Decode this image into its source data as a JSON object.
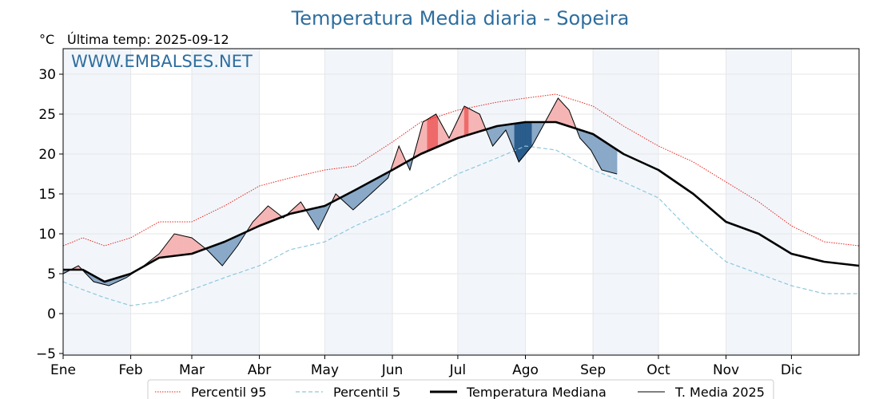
{
  "chart_data": {
    "type": "line",
    "title": "Temperatura Media diaria - Sopeira",
    "unit": "°C",
    "subtitle": "Última temp: 2025-09-12",
    "watermark": "WWW.EMBALSES.NET",
    "x_tick_labels": [
      "Ene",
      "Feb",
      "Mar",
      "Abr",
      "May",
      "Jun",
      "Jul",
      "Ago",
      "Sep",
      "Oct",
      "Nov",
      "Dic"
    ],
    "y_ticks": [
      -5,
      0,
      5,
      10,
      15,
      20,
      25,
      30
    ],
    "y_tick_labels": [
      "−5",
      "0",
      "5",
      "10",
      "15",
      "20",
      "25",
      "30"
    ],
    "ylim": [
      -5.2,
      33.2
    ],
    "xlim": [
      1,
      366
    ],
    "grid": true,
    "legend_position": "bottom-center",
    "colors": {
      "p95": "#e8251c",
      "p5": "#8ec7dc",
      "median": "#000000",
      "t2025": "#000000",
      "above_fill": "#f5b5b5",
      "above_fill_strong": "#ee6a6a",
      "below_fill": "#8aa9c8",
      "below_fill_strong": "#2a5c8c",
      "month_band": "#f2f6fb",
      "title": "#2e6e9e"
    },
    "series": [
      {
        "name": "Percentil 95",
        "style": "dotted",
        "x": [
          1,
          10,
          20,
          32,
          45,
          60,
          75,
          91,
          105,
          121,
          135,
          152,
          165,
          182,
          200,
          213,
          227,
          244,
          258,
          274,
          290,
          305,
          320,
          335,
          350,
          366
        ],
        "values": [
          8.5,
          9.5,
          8.5,
          9.5,
          11.5,
          11.5,
          13.5,
          16,
          17,
          18,
          18.5,
          21.5,
          24,
          25.5,
          26.5,
          27,
          27.5,
          26,
          23.5,
          21,
          19,
          16.5,
          14,
          11,
          9,
          8.5
        ]
      },
      {
        "name": "Percentil 5",
        "style": "dashed",
        "x": [
          1,
          10,
          20,
          32,
          45,
          60,
          75,
          91,
          105,
          121,
          135,
          152,
          165,
          182,
          200,
          213,
          227,
          244,
          258,
          274,
          290,
          305,
          320,
          335,
          350,
          366
        ],
        "values": [
          4,
          3,
          2,
          1,
          1.5,
          3,
          4.5,
          6,
          8,
          9,
          11,
          13,
          15,
          17.5,
          19.5,
          21,
          20.5,
          18,
          16.5,
          14.5,
          10,
          6.5,
          5,
          3.5,
          2.5,
          2.5
        ]
      },
      {
        "name": "Temperatura Mediana",
        "style": "thick",
        "x": [
          1,
          10,
          20,
          32,
          45,
          60,
          75,
          91,
          105,
          121,
          135,
          152,
          165,
          182,
          200,
          213,
          227,
          244,
          258,
          274,
          290,
          305,
          320,
          335,
          350,
          366
        ],
        "values": [
          5.5,
          5.5,
          4,
          5,
          7,
          7.5,
          9,
          11,
          12.5,
          13.5,
          15.5,
          18,
          20,
          22,
          23.5,
          24,
          24,
          22.5,
          20,
          18,
          15,
          11.5,
          10,
          7.5,
          6.5,
          6
        ]
      },
      {
        "name": "T. Media 2025",
        "style": "thin",
        "x": [
          1,
          8,
          15,
          22,
          30,
          38,
          45,
          52,
          60,
          67,
          74,
          81,
          88,
          95,
          102,
          110,
          118,
          126,
          134,
          142,
          150,
          155,
          160,
          166,
          172,
          178,
          185,
          192,
          198,
          204,
          210,
          216,
          222,
          228,
          233,
          238,
          243,
          248,
          255
        ],
        "values": [
          5,
          6,
          4,
          3.5,
          4.5,
          6,
          7.5,
          10,
          9.5,
          8,
          6,
          8.5,
          11.5,
          13.5,
          12,
          14,
          10.5,
          15,
          13,
          15,
          17,
          21,
          18,
          24,
          25,
          22,
          26,
          25,
          21,
          23,
          19,
          21,
          24,
          27,
          25.5,
          22,
          20.5,
          18,
          17.5
        ]
      }
    ]
  }
}
